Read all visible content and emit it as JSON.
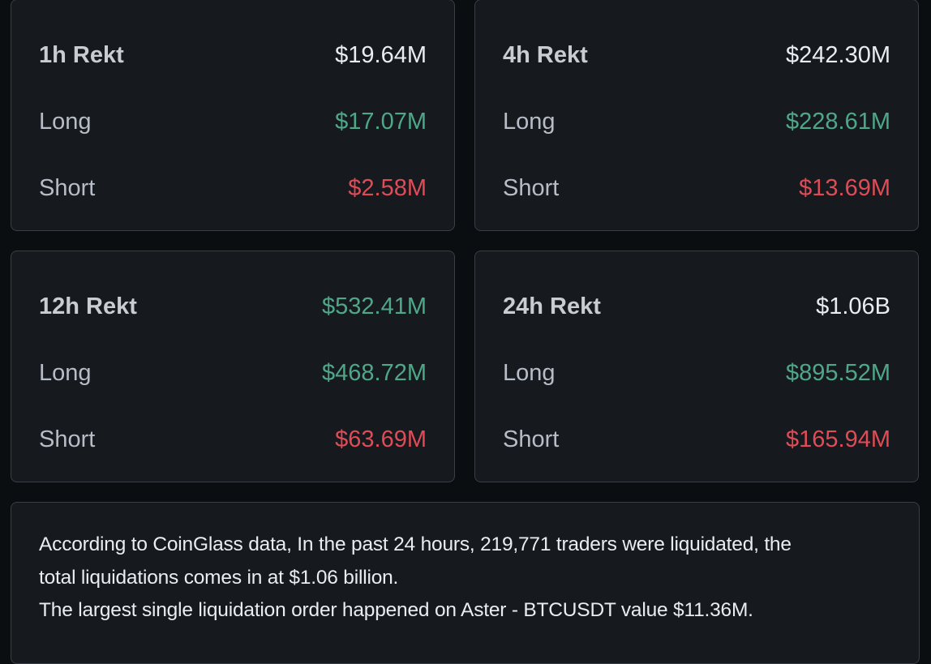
{
  "cards": [
    {
      "title": "1h Rekt",
      "total": "$19.64M",
      "total_color": "#eaecef",
      "long_label": "Long",
      "long": "$17.07M",
      "short_label": "Short",
      "short": "$2.58M"
    },
    {
      "title": "4h Rekt",
      "total": "$242.30M",
      "total_color": "#eaecef",
      "long_label": "Long",
      "long": "$228.61M",
      "short_label": "Short",
      "short": "$13.69M"
    },
    {
      "title": "12h Rekt",
      "total": "$532.41M",
      "total_color": "#4ea888",
      "long_label": "Long",
      "long": "$468.72M",
      "short_label": "Short",
      "short": "$63.69M"
    },
    {
      "title": "24h Rekt",
      "total": "$1.06B",
      "total_color": "#eaecef",
      "long_label": "Long",
      "long": "$895.52M",
      "short_label": "Short",
      "short": "$165.94M"
    }
  ],
  "summary": {
    "lines": [
      "According to CoinGlass data, In the past 24 hours, 219,771 traders were liquidated, the",
      "total liquidations comes in at $1.06 billion.",
      "The largest single liquidation order happened on Aster - BTCUSDT value $11.36M."
    ]
  }
}
